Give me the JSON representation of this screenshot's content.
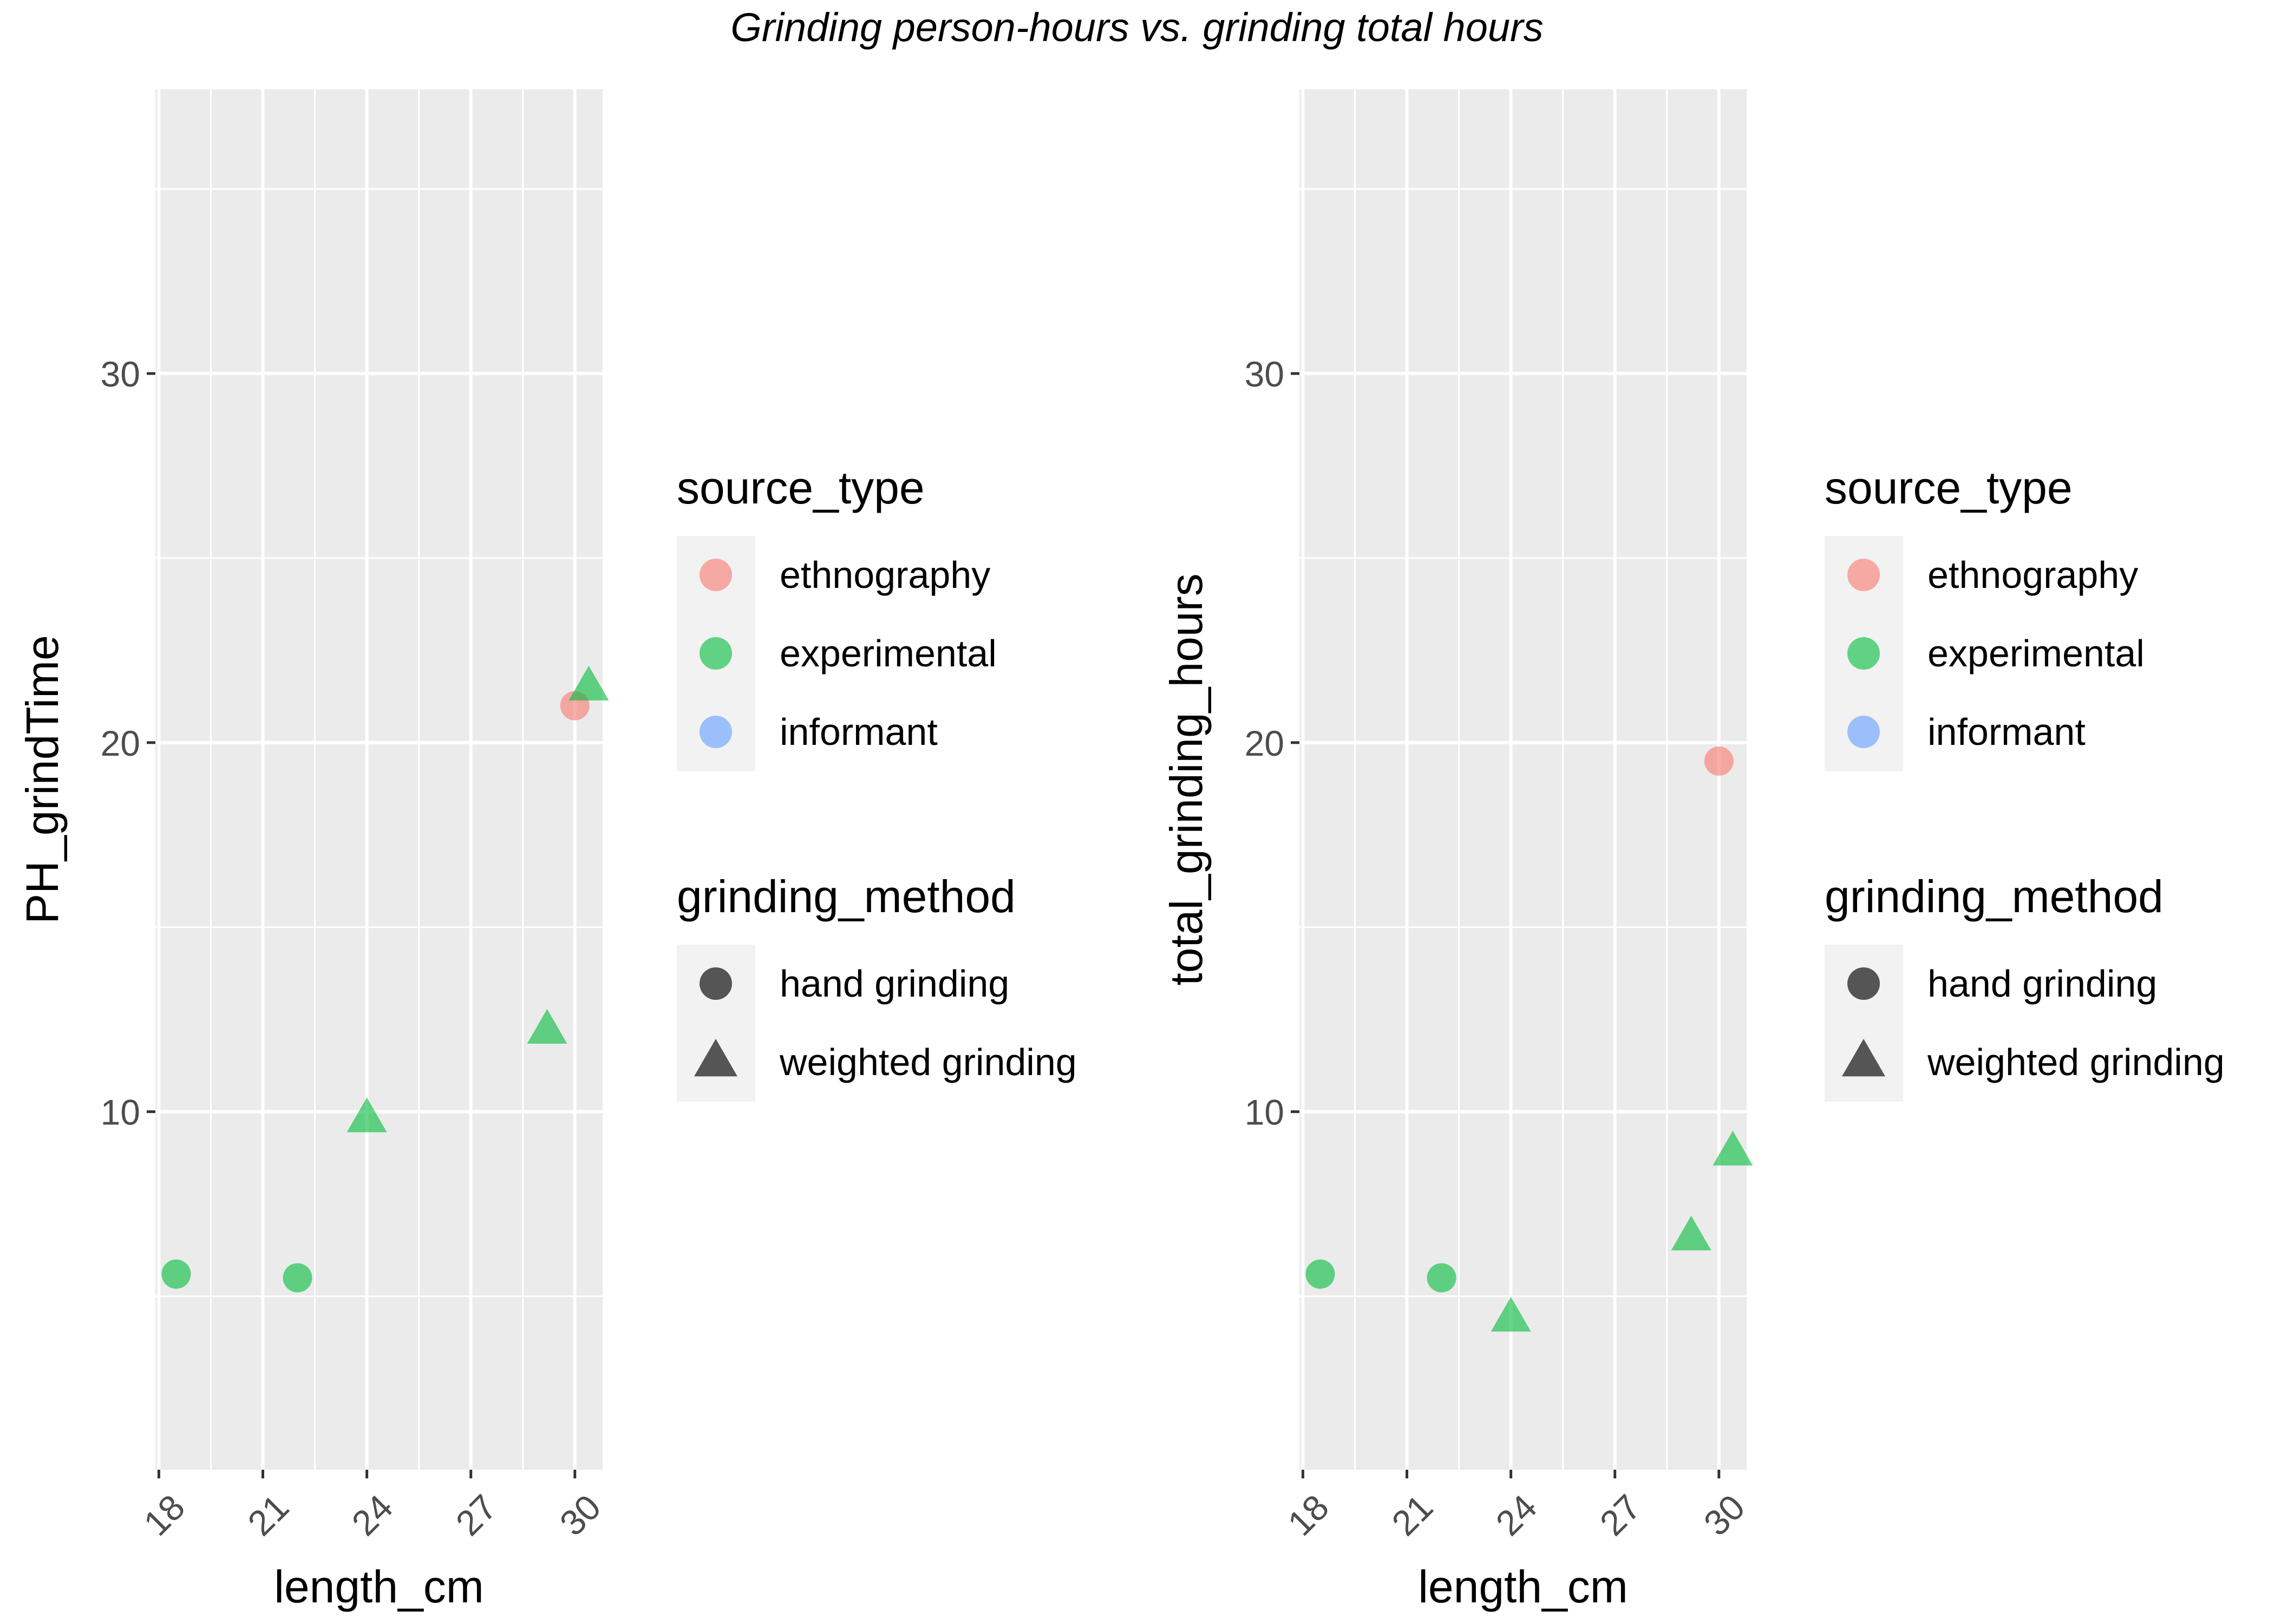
{
  "figure_title": "Grinding person-hours vs. grinding total hours",
  "colors": {
    "panel_bg": "#EBEBEB",
    "grid": "#FFFFFF",
    "ethnography": "#F8766D",
    "experimental": "#00BA38",
    "informant": "#619CFF",
    "shape_key": "#555555",
    "tick_text": "#4D4D4D",
    "axis_text": "#000000"
  },
  "legend": {
    "color_title": "source_type",
    "color_entries": [
      {
        "label": "ethnography",
        "color": "#F8766D"
      },
      {
        "label": "experimental",
        "color": "#00BA38"
      },
      {
        "label": "informant",
        "color": "#619CFF"
      }
    ],
    "shape_title": "grinding_method",
    "shape_entries": [
      {
        "label": "hand grinding",
        "shape": "circle"
      },
      {
        "label": "weighted grinding",
        "shape": "triangle"
      }
    ]
  },
  "chart_data": [
    {
      "type": "scatter",
      "title": "",
      "xlabel": "length_cm",
      "ylabel": "PH_grindTime",
      "xlim": [
        17.9,
        30.8
      ],
      "ylim": [
        0.3,
        37.7
      ],
      "x_ticks": [
        18,
        21,
        24,
        27,
        30
      ],
      "y_ticks": [
        10,
        20,
        30
      ],
      "grid": true,
      "legend_position": "right",
      "points": [
        {
          "x": 18.5,
          "y": 5.6,
          "source_type": "experimental",
          "grinding_method": "hand grinding"
        },
        {
          "x": 22.0,
          "y": 5.5,
          "source_type": "experimental",
          "grinding_method": "hand grinding"
        },
        {
          "x": 24.0,
          "y": 9.8,
          "source_type": "experimental",
          "grinding_method": "weighted grinding"
        },
        {
          "x": 29.2,
          "y": 12.2,
          "source_type": "experimental",
          "grinding_method": "weighted grinding"
        },
        {
          "x": 30.0,
          "y": 21.0,
          "source_type": "ethnography",
          "grinding_method": "hand grinding"
        },
        {
          "x": 30.4,
          "y": 21.5,
          "source_type": "experimental",
          "grinding_method": "weighted grinding"
        }
      ]
    },
    {
      "type": "scatter",
      "title": "",
      "xlabel": "length_cm",
      "ylabel": "total_grinding_hours",
      "xlim": [
        17.9,
        30.8
      ],
      "ylim": [
        0.3,
        37.7
      ],
      "x_ticks": [
        18,
        21,
        24,
        27,
        30
      ],
      "y_ticks": [
        10,
        20,
        30
      ],
      "grid": true,
      "legend_position": "right",
      "points": [
        {
          "x": 18.5,
          "y": 5.6,
          "source_type": "experimental",
          "grinding_method": "hand grinding"
        },
        {
          "x": 22.0,
          "y": 5.5,
          "source_type": "experimental",
          "grinding_method": "hand grinding"
        },
        {
          "x": 24.0,
          "y": 4.4,
          "source_type": "experimental",
          "grinding_method": "weighted grinding"
        },
        {
          "x": 29.2,
          "y": 6.6,
          "source_type": "experimental",
          "grinding_method": "weighted grinding"
        },
        {
          "x": 30.0,
          "y": 19.5,
          "source_type": "ethnography",
          "grinding_method": "hand grinding"
        },
        {
          "x": 30.4,
          "y": 8.9,
          "source_type": "experimental",
          "grinding_method": "weighted grinding"
        }
      ]
    }
  ]
}
